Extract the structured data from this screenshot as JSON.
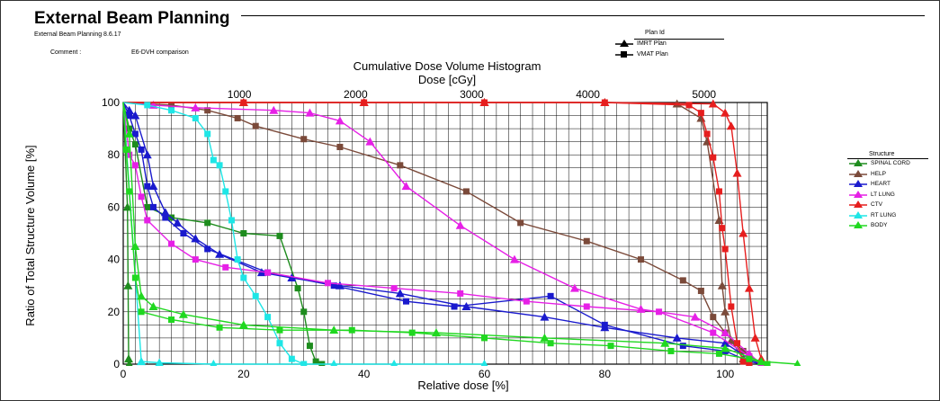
{
  "header": {
    "title": "External Beam Planning",
    "subtitle": "External Beam Planning 8.6.17",
    "comment_label": "Comment :",
    "comment_value": "E6-DVH comparison",
    "plan_id_label": "Plan Id",
    "plans": [
      {
        "label": "IMRT Plan",
        "marker": "triangle"
      },
      {
        "label": "VMAT Plan",
        "marker": "square"
      }
    ]
  },
  "chart_data": {
    "type": "line",
    "title": "Cumulative Dose Volume Histogram",
    "top_axis_label": "Dose [cGy]",
    "xlabel": "Relative dose [%]",
    "ylabel": "Ratio of Total Structure Volume [%]",
    "xlim": [
      0,
      107
    ],
    "ylim": [
      0,
      100
    ],
    "x_ticks": [
      0,
      20,
      40,
      60,
      80,
      100
    ],
    "y_ticks": [
      0,
      20,
      40,
      60,
      80,
      100
    ],
    "top_ticks": [
      1000,
      2000,
      3000,
      4000,
      5000
    ],
    "top_ticks_position_percent": [
      19.3,
      38.6,
      57.9,
      77.2,
      96.5
    ],
    "grid": true,
    "legend_title": "Structure",
    "legend_position": "right",
    "structures": [
      {
        "name": "SPINAL CORD",
        "color": "#1e8c1e",
        "imrt": [
          [
            0,
            100
          ],
          [
            0.7,
            60
          ],
          [
            0.8,
            30
          ],
          [
            0.9,
            2
          ],
          [
            1,
            0
          ]
        ],
        "vmat": [
          [
            0,
            100
          ],
          [
            1,
            90
          ],
          [
            2,
            84
          ],
          [
            4,
            60
          ],
          [
            8,
            56
          ],
          [
            14,
            54
          ],
          [
            20,
            50
          ],
          [
            26,
            49
          ],
          [
            29,
            29
          ],
          [
            30,
            20
          ],
          [
            31,
            7
          ],
          [
            32,
            1
          ],
          [
            33,
            0
          ]
        ]
      },
      {
        "name": "HELP",
        "color": "#7b4a3a",
        "imrt": [
          [
            0,
            100
          ],
          [
            20,
            100
          ],
          [
            40,
            100
          ],
          [
            60,
            100
          ],
          [
            80,
            100
          ],
          [
            92,
            99.5
          ],
          [
            96,
            94
          ],
          [
            97,
            85
          ],
          [
            99,
            55
          ],
          [
            99.5,
            30
          ],
          [
            100,
            20
          ],
          [
            101,
            9
          ],
          [
            103,
            2
          ],
          [
            104,
            0
          ]
        ],
        "vmat": [
          [
            0,
            100
          ],
          [
            8,
            99
          ],
          [
            14,
            97
          ],
          [
            19,
            94
          ],
          [
            22,
            91
          ],
          [
            30,
            86
          ],
          [
            36,
            83
          ],
          [
            46,
            76
          ],
          [
            57,
            66
          ],
          [
            66,
            54
          ],
          [
            77,
            47
          ],
          [
            86,
            40
          ],
          [
            93,
            32
          ],
          [
            96,
            28
          ],
          [
            98,
            18
          ],
          [
            100,
            12
          ],
          [
            103,
            5
          ],
          [
            106,
            0
          ]
        ]
      },
      {
        "name": "HEART",
        "color": "#1a1acd",
        "imrt": [
          [
            0,
            100
          ],
          [
            1,
            97
          ],
          [
            2,
            95
          ],
          [
            4,
            80
          ],
          [
            5,
            68
          ],
          [
            7,
            58
          ],
          [
            9,
            54
          ],
          [
            12,
            48
          ],
          [
            16,
            42
          ],
          [
            23,
            35
          ],
          [
            28,
            33
          ],
          [
            36,
            30
          ],
          [
            46,
            27
          ],
          [
            57,
            22
          ],
          [
            70,
            18
          ],
          [
            80,
            14
          ],
          [
            92,
            10
          ],
          [
            100,
            8
          ],
          [
            104,
            2
          ],
          [
            106,
            0
          ]
        ],
        "vmat": [
          [
            0,
            100
          ],
          [
            1,
            95
          ],
          [
            2,
            88
          ],
          [
            3,
            82
          ],
          [
            4,
            68
          ],
          [
            5,
            60
          ],
          [
            7,
            56
          ],
          [
            10,
            50
          ],
          [
            14,
            44
          ],
          [
            24,
            35
          ],
          [
            35,
            30
          ],
          [
            47,
            24
          ],
          [
            55,
            22
          ],
          [
            71,
            26
          ],
          [
            80,
            15
          ],
          [
            93,
            7
          ],
          [
            100,
            5
          ],
          [
            104,
            1
          ],
          [
            106,
            0
          ]
        ]
      },
      {
        "name": "LT LUNG",
        "color": "#e620e6",
        "imrt": [
          [
            0,
            100
          ],
          [
            5,
            99
          ],
          [
            12,
            98
          ],
          [
            25,
            97
          ],
          [
            31,
            96
          ],
          [
            36,
            93
          ],
          [
            41,
            85
          ],
          [
            47,
            68
          ],
          [
            56,
            53
          ],
          [
            65,
            40
          ],
          [
            75,
            29
          ],
          [
            86,
            21
          ],
          [
            95,
            18
          ],
          [
            100,
            12
          ],
          [
            104,
            4
          ],
          [
            106,
            0
          ]
        ],
        "vmat": [
          [
            0,
            100
          ],
          [
            1,
            80
          ],
          [
            2,
            76
          ],
          [
            3,
            64
          ],
          [
            4,
            55
          ],
          [
            8,
            46
          ],
          [
            12,
            40
          ],
          [
            17,
            37
          ],
          [
            24,
            35
          ],
          [
            34,
            31
          ],
          [
            45,
            29
          ],
          [
            56,
            27
          ],
          [
            67,
            24
          ],
          [
            77,
            22
          ],
          [
            89,
            20
          ],
          [
            98,
            12
          ],
          [
            104,
            3
          ],
          [
            106,
            0
          ]
        ]
      },
      {
        "name": "CTV",
        "color": "#e61e1e",
        "imrt": [
          [
            0,
            100
          ],
          [
            20,
            100
          ],
          [
            40,
            100
          ],
          [
            60,
            100
          ],
          [
            80,
            100
          ],
          [
            98,
            99.5
          ],
          [
            100,
            96
          ],
          [
            101,
            91
          ],
          [
            102,
            73
          ],
          [
            103,
            50
          ],
          [
            104,
            29
          ],
          [
            105,
            10
          ],
          [
            106,
            2
          ],
          [
            107,
            0
          ]
        ],
        "vmat": [
          [
            0,
            100
          ],
          [
            20,
            100
          ],
          [
            40,
            100
          ],
          [
            60,
            100
          ],
          [
            80,
            100
          ],
          [
            94,
            99
          ],
          [
            96,
            96
          ],
          [
            97,
            88
          ],
          [
            98,
            79
          ],
          [
            99,
            66
          ],
          [
            99.5,
            52
          ],
          [
            100,
            44
          ],
          [
            101,
            22
          ],
          [
            102,
            8
          ],
          [
            103,
            1
          ],
          [
            104,
            0
          ]
        ]
      },
      {
        "name": "RT LUNG",
        "color": "#1ee6e6",
        "imrt": [
          [
            0,
            100
          ],
          [
            3,
            1
          ],
          [
            6,
            0.5
          ],
          [
            15,
            0
          ],
          [
            35,
            0
          ],
          [
            45,
            0
          ],
          [
            60,
            0
          ]
        ],
        "vmat": [
          [
            0,
            100
          ],
          [
            4,
            99
          ],
          [
            8,
            97
          ],
          [
            12,
            94
          ],
          [
            14,
            88
          ],
          [
            15,
            78
          ],
          [
            16,
            76
          ],
          [
            17,
            66
          ],
          [
            18,
            55
          ],
          [
            19,
            40
          ],
          [
            20,
            33
          ],
          [
            22,
            26
          ],
          [
            24,
            18
          ],
          [
            26,
            8
          ],
          [
            28,
            2
          ],
          [
            30,
            0
          ]
        ]
      },
      {
        "name": "BODY",
        "color": "#20d820",
        "imrt": [
          [
            0,
            100
          ],
          [
            1,
            88
          ],
          [
            2,
            45
          ],
          [
            3,
            26
          ],
          [
            5,
            22
          ],
          [
            10,
            19
          ],
          [
            20,
            15
          ],
          [
            35,
            13
          ],
          [
            52,
            12
          ],
          [
            70,
            10
          ],
          [
            90,
            8
          ],
          [
            100,
            6
          ],
          [
            106,
            1
          ],
          [
            112,
            0
          ]
        ],
        "vmat": [
          [
            0,
            100
          ],
          [
            0.5,
            82
          ],
          [
            1,
            66
          ],
          [
            2,
            33
          ],
          [
            3,
            20
          ],
          [
            8,
            17
          ],
          [
            16,
            14
          ],
          [
            26,
            13
          ],
          [
            38,
            13
          ],
          [
            48,
            12
          ],
          [
            60,
            10
          ],
          [
            71,
            8
          ],
          [
            81,
            7
          ],
          [
            91,
            5
          ],
          [
            99,
            4
          ],
          [
            104,
            2
          ],
          [
            107,
            0
          ]
        ]
      }
    ]
  }
}
